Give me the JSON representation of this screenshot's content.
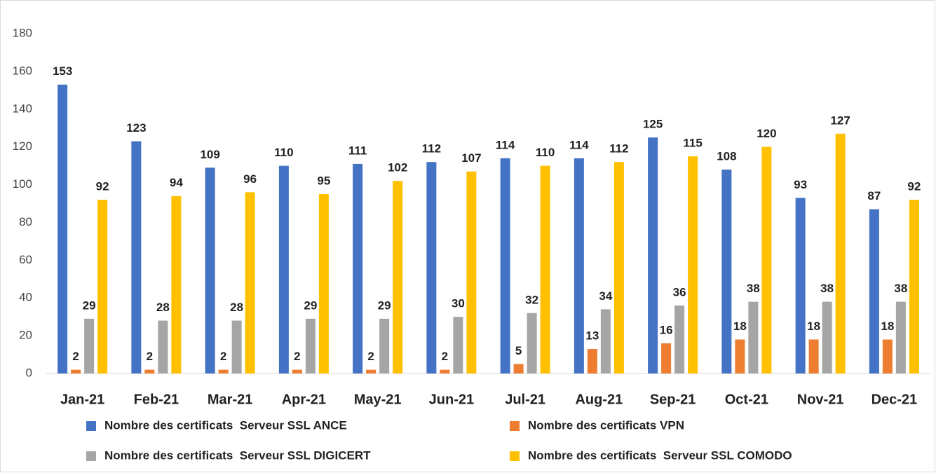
{
  "chart_data": {
    "type": "bar",
    "categories": [
      "Jan-21",
      "Feb-21",
      "Mar-21",
      "Apr-21",
      "May-21",
      "Jun-21",
      "Jul-21",
      "Aug-21",
      "Sep-21",
      "Oct-21",
      "Nov-21",
      "Dec-21"
    ],
    "series": [
      {
        "name": "Nombre des certificats  Serveur SSL ANCE",
        "color": "#4472c4",
        "values": [
          153,
          123,
          109,
          110,
          111,
          112,
          114,
          114,
          125,
          108,
          93,
          87
        ]
      },
      {
        "name": "Nombre des certificats VPN",
        "color": "#ed7d31",
        "values": [
          2,
          2,
          2,
          2,
          2,
          2,
          5,
          13,
          16,
          18,
          18,
          18
        ]
      },
      {
        "name": "Nombre des certificats  Serveur SSL DIGICERT",
        "color": "#a5a5a5",
        "values": [
          29,
          28,
          28,
          29,
          29,
          30,
          32,
          34,
          36,
          38,
          38,
          38
        ]
      },
      {
        "name": "Nombre des certificats  Serveur SSL COMODO",
        "color": "#ffc000",
        "values": [
          92,
          94,
          96,
          95,
          102,
          107,
          110,
          112,
          115,
          120,
          127,
          92
        ]
      }
    ],
    "ylim": [
      0,
      180
    ],
    "yticks": [
      0,
      20,
      40,
      60,
      80,
      100,
      120,
      140,
      160,
      180
    ],
    "grid": false,
    "legend": "bottom"
  }
}
